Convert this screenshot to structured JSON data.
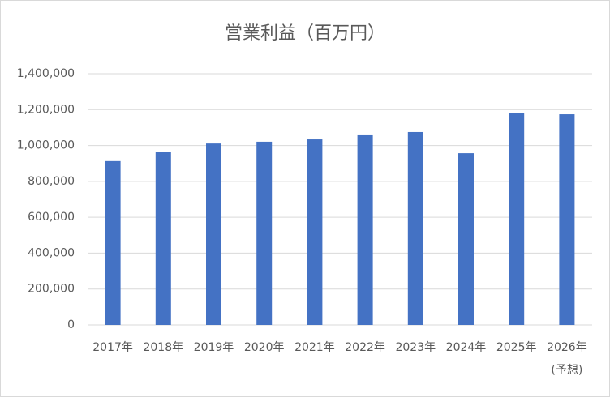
{
  "chart_data": {
    "type": "bar",
    "title": "営業利益（百万円）",
    "categories": [
      "2017年",
      "2018年",
      "2019年",
      "2020年",
      "2021年",
      "2022年",
      "2023年",
      "2024年",
      "2025年",
      "2026年\n(予想)"
    ],
    "values": [
      913000,
      962000,
      1011000,
      1021000,
      1034000,
      1057000,
      1075000,
      957000,
      1183000,
      1174000
    ],
    "color": "#4472c4",
    "ylim": [
      0,
      1400000
    ],
    "yticks": [
      0,
      {
        "value": 200000,
        "label": "200,000"
      },
      {
        "value": 400000,
        "label": "400,000"
      },
      {
        "value": 600000,
        "label": "600,000"
      },
      {
        "value": 800000,
        "label": "800,000"
      },
      {
        "value": 1000000,
        "label": "1,000,000"
      },
      {
        "value": 1200000,
        "label": "1,200,000"
      },
      {
        "value": 1400000,
        "label": "1,400,000"
      }
    ],
    "grid": true
  }
}
